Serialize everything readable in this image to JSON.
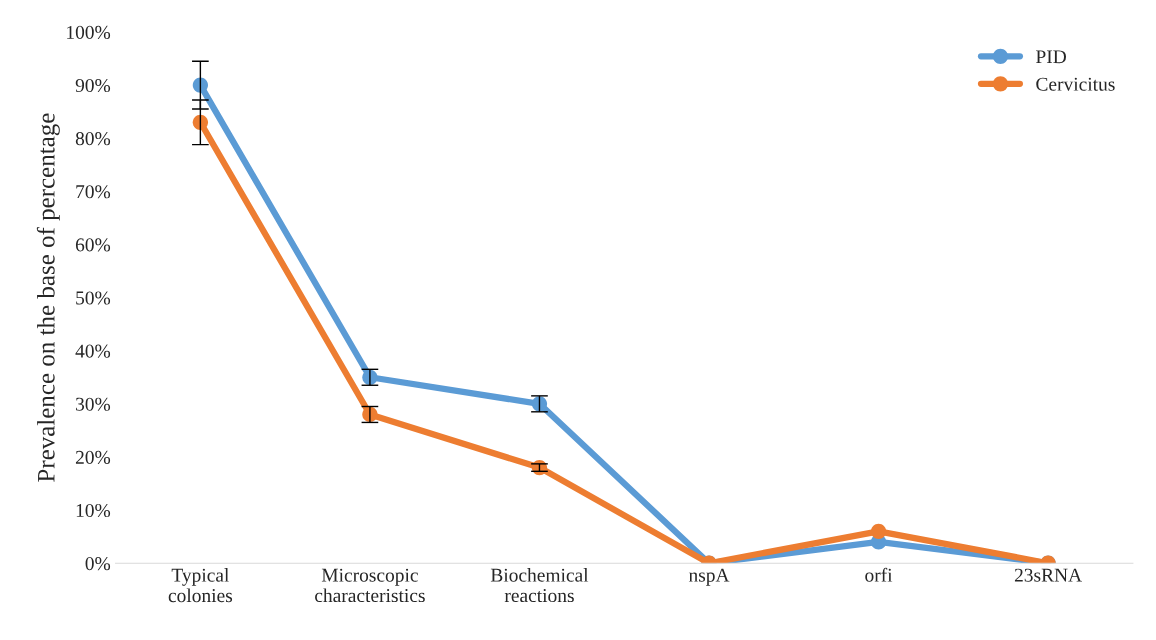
{
  "chart_data": {
    "type": "line",
    "ylabel": "Prevalence on the base of percentage",
    "categories": [
      "Typical\ncolonies",
      "Microscopic\ncharacteristics",
      "Biochemical\nreactions",
      "nspA",
      "orfi",
      "23sRNA"
    ],
    "series": [
      {
        "name": "PID",
        "color": "#5b9bd5",
        "values": [
          90,
          35,
          30,
          0,
          4,
          0
        ],
        "errors": [
          4.5,
          1.5,
          1.5,
          null,
          null,
          null
        ]
      },
      {
        "name": "Cervicitus",
        "color": "#ed7d31",
        "values": [
          83,
          28,
          18,
          0,
          6,
          0
        ],
        "errors": [
          4.2,
          1.5,
          0.7,
          null,
          null,
          null
        ]
      }
    ],
    "ylim": [
      0,
      100
    ],
    "yticks": [
      {
        "value": 0,
        "label": "0%"
      },
      {
        "value": 10,
        "label": "10%"
      },
      {
        "value": 20,
        "label": "20%"
      },
      {
        "value": 30,
        "label": "30%"
      },
      {
        "value": 40,
        "label": "40%"
      },
      {
        "value": 50,
        "label": "50%"
      },
      {
        "value": 60,
        "label": "60%"
      },
      {
        "value": 70,
        "label": "70%"
      },
      {
        "value": 80,
        "label": "80%"
      },
      {
        "value": 90,
        "label": "90%"
      },
      {
        "value": 100,
        "label": "100%"
      }
    ],
    "marker": "circle",
    "line_style": "solid",
    "legend": "top right",
    "grid": false
  }
}
